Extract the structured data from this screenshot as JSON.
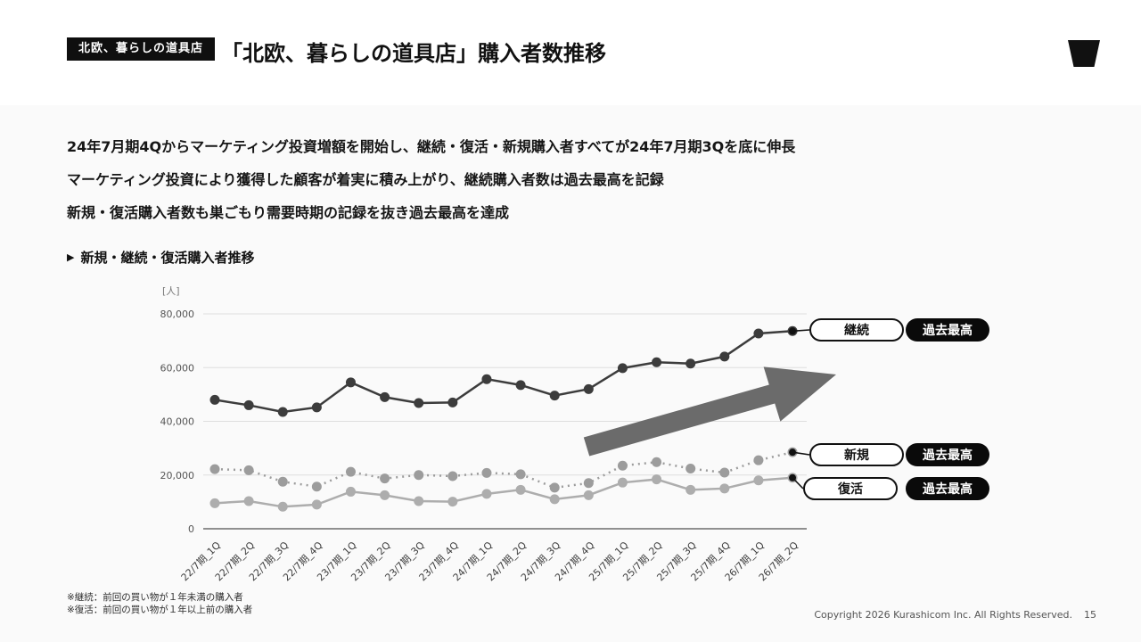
{
  "header": {
    "badge": "北欧、暮らしの道具店",
    "title": "「北欧、暮らしの道具店」購入者数推移"
  },
  "summary": {
    "line1": "24年7月期4Qからマーケティング投資増額を開始し、継続・復活・新規購入者すべてが24年7月期3Qを底に伸長",
    "line2": "マーケティング投資により獲得した顧客が着実に積み上がり、継続購入者数は過去最高を記録",
    "line3": "新規・復活購入者数も巣ごもり需要時期の記録を抜き過去最高を達成"
  },
  "section": {
    "marker": "▶",
    "title": "新規・継続・復活購入者推移"
  },
  "chart_data": {
    "type": "line",
    "unit_label": "[人]",
    "ylim": [
      0,
      80000
    ],
    "yticks": [
      0,
      20000,
      40000,
      60000,
      80000
    ],
    "grid": true,
    "categories": [
      "22/7期_1Q",
      "22/7期_2Q",
      "22/7期_3Q",
      "22/7期_4Q",
      "23/7期_1Q",
      "23/7期_2Q",
      "23/7期_3Q",
      "23/7期_4Q",
      "24/7期_1Q",
      "24/7期_2Q",
      "24/7期_3Q",
      "24/7期_4Q",
      "25/7期_1Q",
      "25/7期_2Q",
      "25/7期_3Q",
      "25/7期_4Q",
      "26/7期_1Q",
      "26/7期_2Q"
    ],
    "series": [
      {
        "key": "continuing",
        "name": "継続",
        "badge": "過去最高",
        "style": "solid",
        "color": "#3c3c3c",
        "values": [
          48000,
          46000,
          43500,
          45200,
          54500,
          49000,
          46800,
          47000,
          55700,
          53500,
          49600,
          52000,
          59800,
          62000,
          61500,
          64100,
          72700,
          73600
        ]
      },
      {
        "key": "new",
        "name": "新規",
        "badge": "過去最高",
        "style": "dotted",
        "color": "#9c9c9c",
        "values": [
          22200,
          21800,
          17500,
          15700,
          21200,
          18700,
          20000,
          19600,
          20800,
          20300,
          15300,
          17000,
          23500,
          24800,
          22400,
          20900,
          25500,
          28500
        ]
      },
      {
        "key": "returning",
        "name": "復活",
        "badge": "過去最高",
        "style": "solid",
        "color": "#adadad",
        "values": [
          9500,
          10300,
          8200,
          9000,
          13800,
          12500,
          10300,
          10100,
          13000,
          14500,
          11000,
          12500,
          17200,
          18400,
          14500,
          15000,
          18000,
          19000
        ]
      }
    ],
    "annotation": "upward-trend-arrow"
  },
  "footnotes": [
    "※継続：前回の買い物が１年未満の購入者",
    "※復活：前回の買い物が１年以上前の購入者"
  ],
  "footer": {
    "copyright": "Copyright 2026 Kurashicom Inc. All Rights Reserved.",
    "page_number": "15"
  },
  "colors": {
    "accent": "#111111",
    "arrow": "#6b6b6b",
    "grid": "#dedede",
    "axis": "#8f8f8f"
  }
}
